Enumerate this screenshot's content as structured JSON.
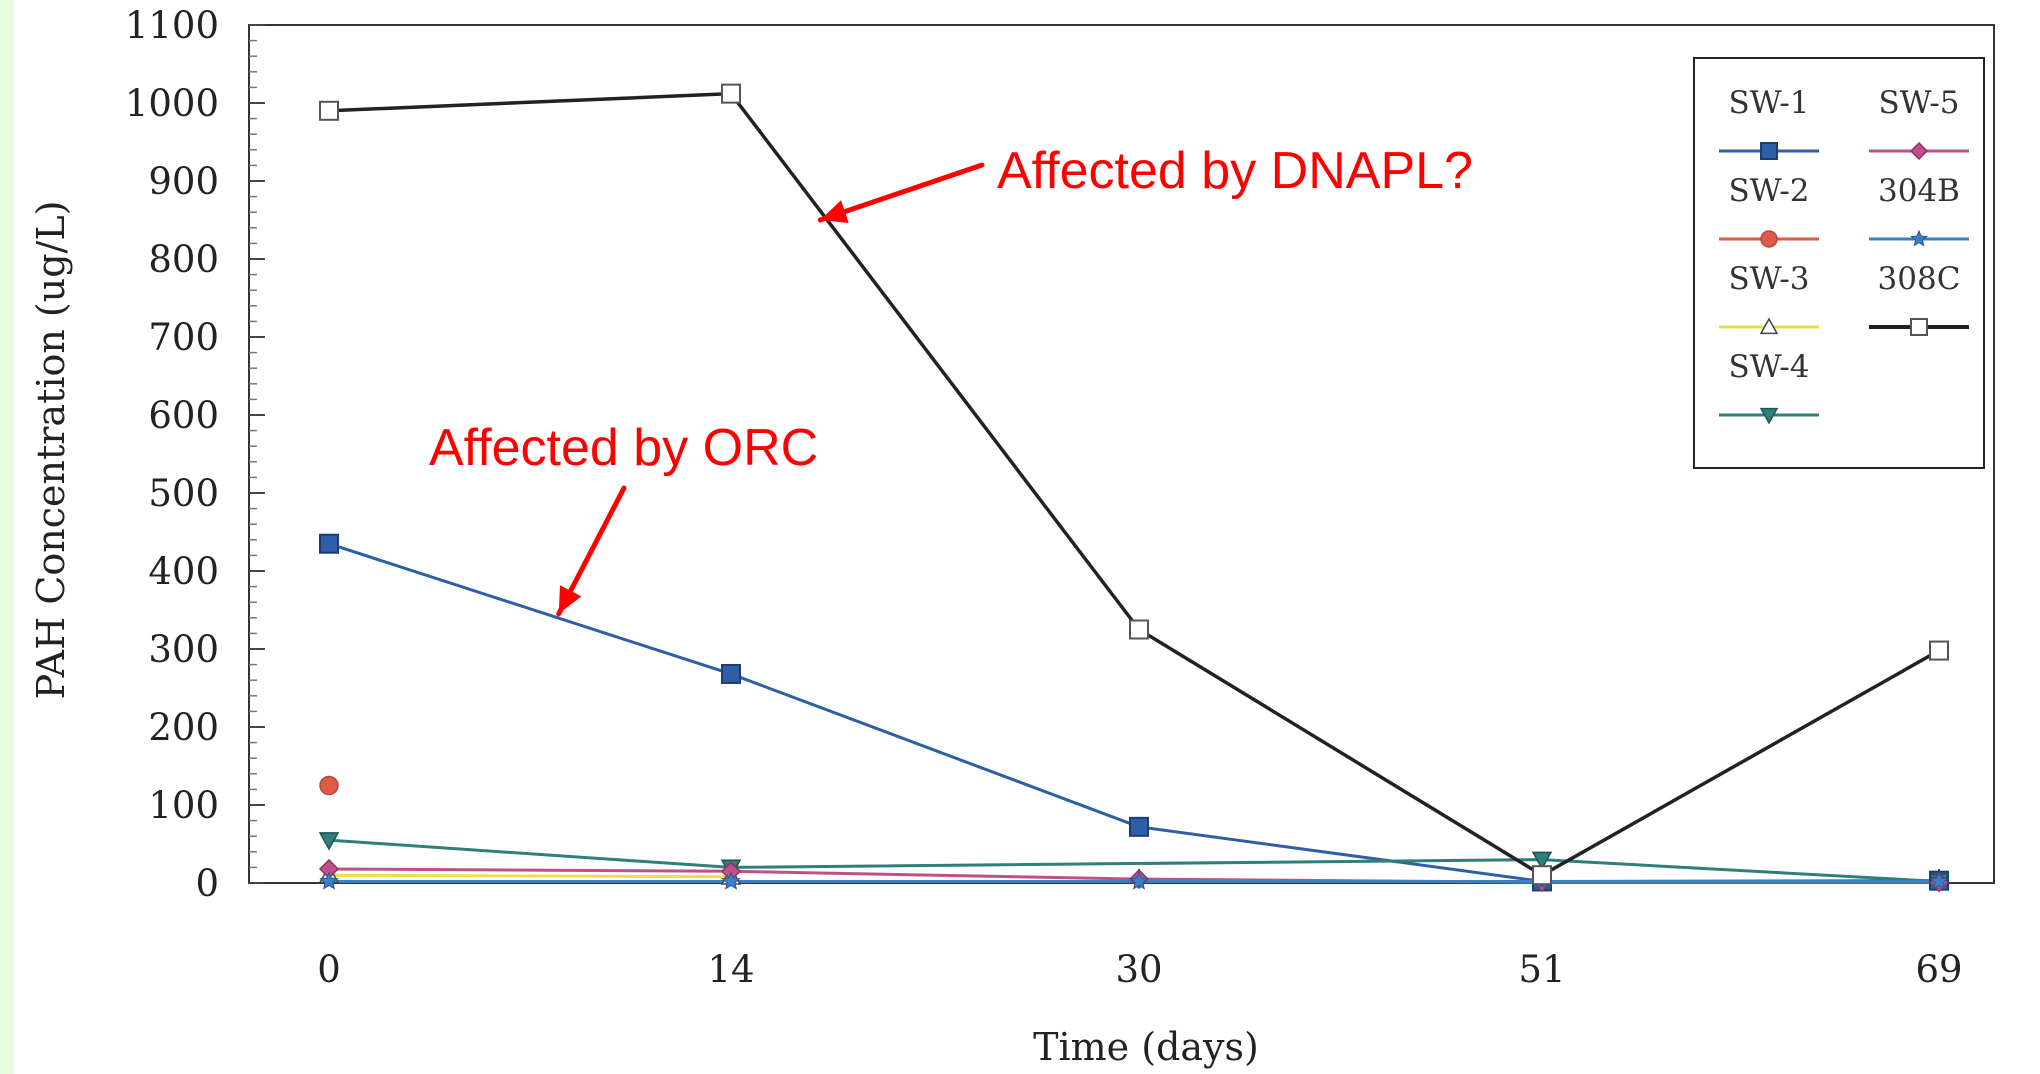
{
  "chart_data": {
    "type": "line",
    "xlabel": "Time (days)",
    "ylabel": "PAH Concentration (ug/L)",
    "x": [
      0,
      14,
      30,
      51,
      69
    ],
    "x_tick_labels": [
      "0",
      "14",
      "30",
      "51",
      "69"
    ],
    "ylim": [
      0,
      1100
    ],
    "y_ticks": [
      0,
      100,
      200,
      300,
      400,
      500,
      600,
      700,
      800,
      900,
      1000,
      1100
    ],
    "grid": false,
    "legend_position": "top-right",
    "series": [
      {
        "name": "SW-1",
        "color": "#2e5ea8",
        "marker": "square",
        "values": [
          435,
          268,
          72,
          2,
          3
        ]
      },
      {
        "name": "SW-2",
        "color": "#e05a4a",
        "marker": "circle",
        "values": [
          125,
          null,
          null,
          null,
          null
        ]
      },
      {
        "name": "SW-3",
        "color": "#e8e04a",
        "marker": "triangle-up",
        "values": [
          10,
          8,
          null,
          null,
          null
        ]
      },
      {
        "name": "SW-4",
        "color": "#2f7f7a",
        "marker": "triangle-down",
        "values": [
          55,
          20,
          null,
          30,
          2
        ]
      },
      {
        "name": "SW-5",
        "color": "#c0508a",
        "marker": "diamond",
        "values": [
          18,
          15,
          5,
          1,
          1
        ]
      },
      {
        "name": "304B",
        "color": "#3a7fc8",
        "marker": "star",
        "values": [
          2,
          2,
          2,
          2,
          2
        ]
      },
      {
        "name": "308C",
        "color": "#222222",
        "marker": "open-square",
        "values": [
          990,
          1012,
          325,
          10,
          298
        ]
      }
    ],
    "annotations": [
      {
        "text": "Affected by DNAPL?",
        "color": "#ff0000",
        "points_to": {
          "x": 17.5,
          "y": 850
        }
      },
      {
        "text": "Affected by ORC",
        "color": "#ff0000",
        "points_to": {
          "x": 8,
          "y": 345
        }
      }
    ]
  }
}
